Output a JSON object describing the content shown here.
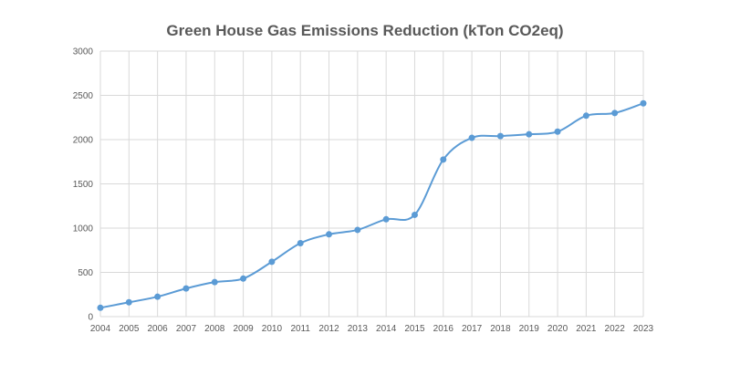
{
  "chart_data": {
    "type": "line",
    "title": "Green House Gas Emissions Reduction (kTon CO2eq)",
    "xlabel": "",
    "ylabel": "",
    "categories": [
      "2004",
      "2005",
      "2006",
      "2007",
      "2008",
      "2009",
      "2010",
      "2011",
      "2012",
      "2013",
      "2014",
      "2015",
      "2016",
      "2017",
      "2018",
      "2019",
      "2020",
      "2021",
      "2022",
      "2023"
    ],
    "values": [
      100,
      162,
      225,
      318,
      390,
      430,
      620,
      830,
      930,
      980,
      1100,
      1150,
      1775,
      2020,
      2040,
      2060,
      2090,
      2270,
      2300,
      2410
    ],
    "ylim": [
      0,
      3000
    ],
    "yticks": [
      0,
      500,
      1000,
      1500,
      2000,
      2500,
      3000
    ],
    "grid": true,
    "smooth": true,
    "markers": true,
    "legend": "none",
    "color": "#5b9bd5"
  }
}
